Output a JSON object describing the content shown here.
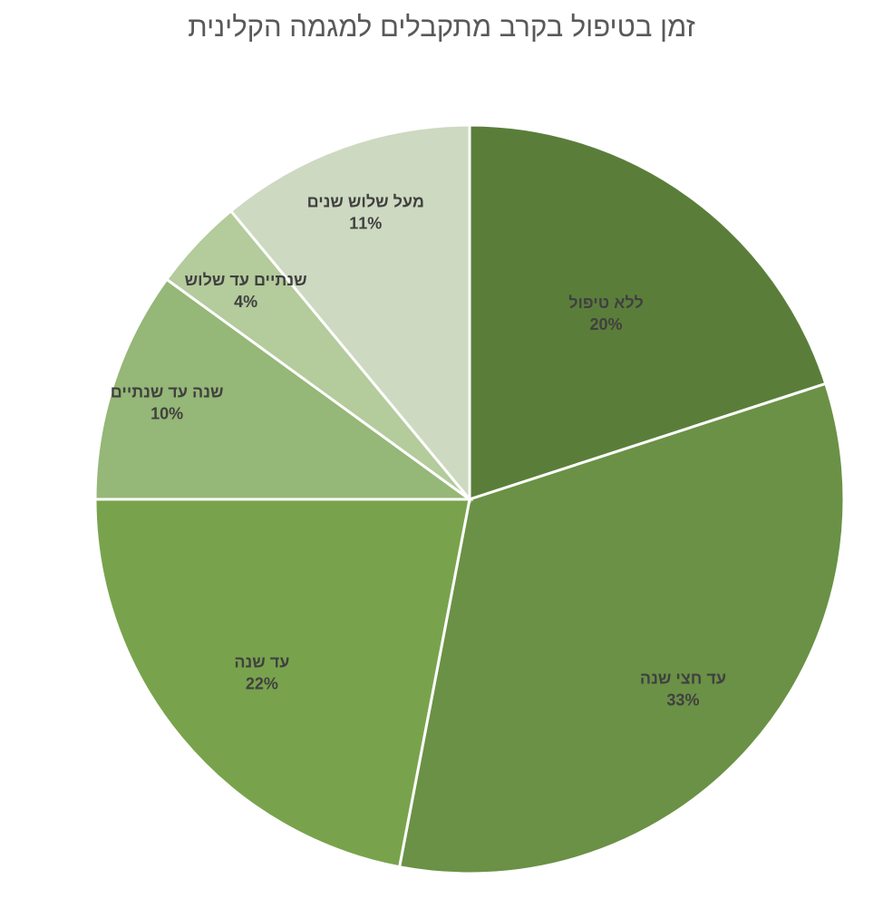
{
  "chart_data": {
    "type": "pie",
    "title": "זמן בטיפול בקרב מתקבלים למגמה הקלינית",
    "slices": [
      {
        "label": "ללא טיפול",
        "value": 20,
        "value_label": "20%",
        "color": "#5a7e3a"
      },
      {
        "label": "עד חצי שנה",
        "value": 33,
        "value_label": "33%",
        "color": "#6a9145"
      },
      {
        "label": "עד שנה",
        "value": 22,
        "value_label": "22%",
        "color": "#78a34c"
      },
      {
        "label": "שנה עד שנתיים",
        "value": 10,
        "value_label": "10%",
        "color": "#95b777"
      },
      {
        "label": "שנתיים עד שלוש",
        "value": 4,
        "value_label": "4%",
        "color": "#b4cb9c"
      },
      {
        "label": "מעל שלוש שנים",
        "value": 11,
        "value_label": "11%",
        "color": "#cdd9c0"
      }
    ],
    "start_direction": "top",
    "order": "clockwise",
    "data_labels": "inside",
    "legend": "none"
  }
}
